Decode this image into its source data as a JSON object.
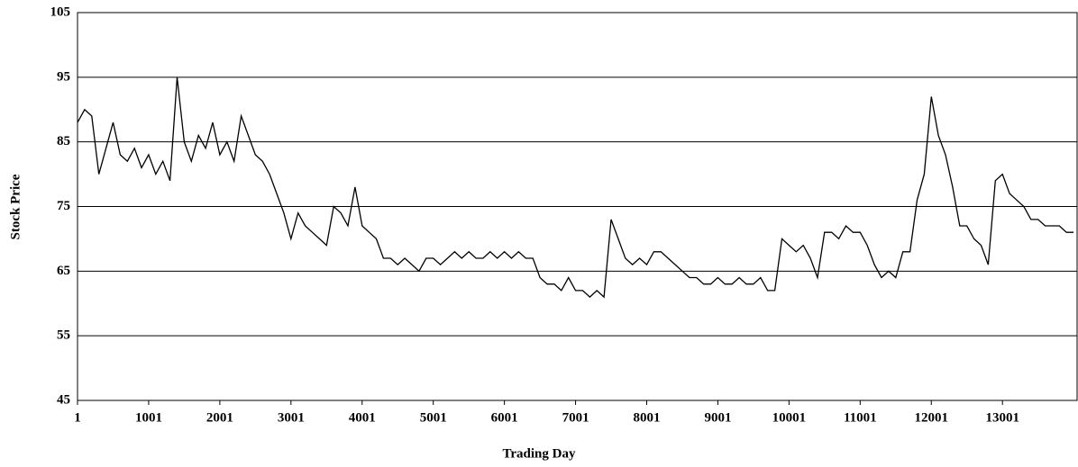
{
  "chart_data": {
    "type": "line",
    "x_label": "Trading Day",
    "y_label": "Stock Price",
    "x": [
      1,
      101,
      201,
      301,
      401,
      501,
      601,
      701,
      801,
      901,
      1001,
      1101,
      1201,
      1301,
      1401,
      1501,
      1601,
      1701,
      1801,
      1901,
      2001,
      2101,
      2201,
      2301,
      2401,
      2501,
      2601,
      2701,
      2801,
      2901,
      3001,
      3101,
      3201,
      3301,
      3401,
      3501,
      3601,
      3701,
      3801,
      3901,
      4001,
      4101,
      4201,
      4301,
      4401,
      4501,
      4601,
      4701,
      4801,
      4901,
      5001,
      5101,
      5201,
      5301,
      5401,
      5501,
      5601,
      5701,
      5801,
      5901,
      6001,
      6101,
      6201,
      6301,
      6401,
      6501,
      6601,
      6701,
      6801,
      6901,
      7001,
      7101,
      7201,
      7301,
      7401,
      7501,
      7601,
      7701,
      7801,
      7901,
      8001,
      8101,
      8201,
      8301,
      8401,
      8501,
      8601,
      8701,
      8801,
      8901,
      9001,
      9101,
      9201,
      9301,
      9401,
      9501,
      9601,
      9701,
      9801,
      9901,
      10001,
      10101,
      10201,
      10301,
      10401,
      10501,
      10601,
      10701,
      10801,
      10901,
      11001,
      11101,
      11201,
      11301,
      11401,
      11501,
      11601,
      11701,
      11801,
      11901,
      12001,
      12101,
      12201,
      12301,
      12401,
      12501,
      12601,
      12701,
      12801,
      12901,
      13001,
      13101,
      13201,
      13301,
      13401,
      13501,
      13601,
      13701,
      13801,
      13901,
      14001
    ],
    "values": [
      88,
      90,
      89,
      80,
      84,
      88,
      83,
      82,
      84,
      81,
      83,
      80,
      82,
      79,
      95,
      85,
      82,
      86,
      84,
      88,
      83,
      85,
      82,
      89,
      86,
      83,
      82,
      80,
      77,
      74,
      70,
      74,
      72,
      71,
      70,
      69,
      75,
      74,
      72,
      78,
      72,
      71,
      70,
      67,
      67,
      66,
      67,
      66,
      65,
      67,
      67,
      66,
      67,
      68,
      67,
      68,
      67,
      67,
      68,
      67,
      68,
      67,
      68,
      67,
      67,
      64,
      63,
      63,
      62,
      64,
      62,
      62,
      61,
      62,
      61,
      73,
      70,
      67,
      66,
      67,
      66,
      68,
      68,
      67,
      66,
      65,
      64,
      64,
      63,
      63,
      64,
      63,
      63,
      64,
      63,
      63,
      64,
      62,
      62,
      70,
      69,
      68,
      69,
      67,
      64,
      71,
      71,
      70,
      72,
      71,
      71,
      69,
      66,
      64,
      65,
      64,
      68,
      68,
      76,
      80,
      92,
      86,
      83,
      78,
      72,
      72,
      70,
      69,
      66,
      79,
      80,
      77,
      76,
      75,
      73,
      73,
      72,
      72,
      72,
      71,
      71
    ],
    "color": "#000000",
    "xlim": [
      1,
      14050
    ],
    "xticks": [
      1,
      1001,
      2001,
      3001,
      4001,
      5001,
      6001,
      7001,
      8001,
      9001,
      10001,
      11001,
      12001,
      13001
    ],
    "ylim": [
      45,
      105
    ],
    "yticks": [
      45,
      55,
      65,
      75,
      85,
      95,
      105
    ],
    "grid": true
  }
}
